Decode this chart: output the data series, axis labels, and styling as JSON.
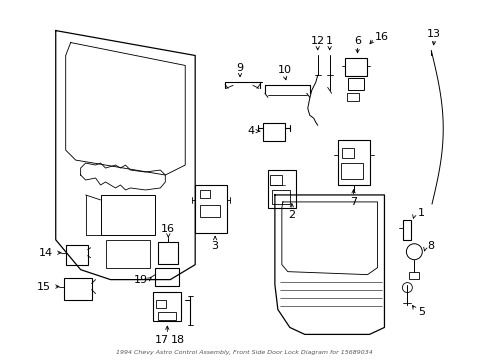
{
  "title": "1994 Chevy Astro Control Assembly, Front Side Door Lock Diagram for 15689034",
  "bg_color": "#ffffff",
  "line_color": "#000000",
  "fig_width": 4.89,
  "fig_height": 3.6,
  "dpi": 100
}
